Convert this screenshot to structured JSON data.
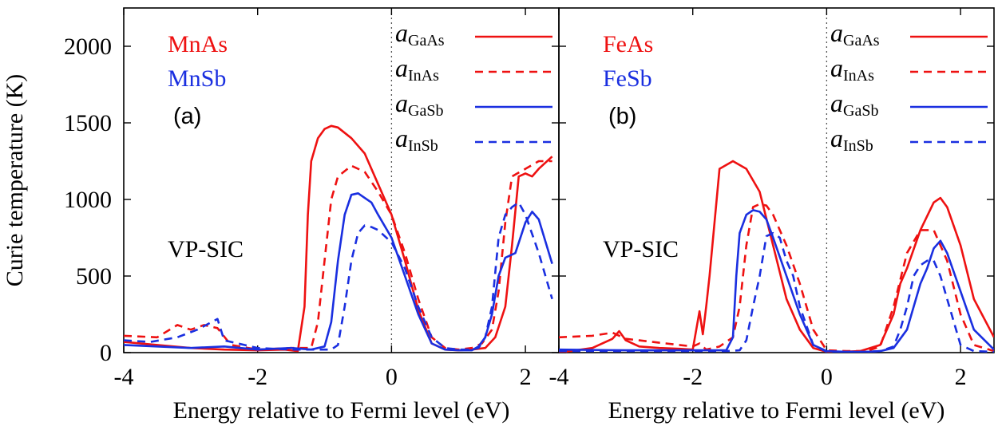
{
  "ylabel": "Curie temperature (K)",
  "yticks": [
    "0",
    "500",
    "1000",
    "1500",
    "2000"
  ],
  "ylim": [
    0,
    2250
  ],
  "xlim": [
    -4,
    2.5
  ],
  "colors": {
    "red": "#ee1111",
    "blue": "#1a2fe0",
    "axis": "#000000"
  },
  "chart_data": [
    {
      "type": "line",
      "panel_label": "(a)",
      "compound_labels": [
        "MnAs",
        "MnSb"
      ],
      "method_label": "VP-SIC",
      "xlabel": "Energy relative to Fermi level (eV)",
      "xticks": [
        "-4",
        "-2",
        "0",
        "2"
      ],
      "ylabel": "Curie temperature (K)",
      "xlim": [
        -4,
        2.5
      ],
      "ylim": [
        0,
        2250
      ],
      "fermi_line": 0,
      "legend_position": "top-right",
      "series": [
        {
          "name": "a_GaAs",
          "base": "a",
          "sub": "GaAs",
          "color": "red",
          "dash": false,
          "x": [
            -4,
            -3.5,
            -3,
            -2.5,
            -2,
            -1.6,
            -1.4,
            -1.3,
            -1.25,
            -1.2,
            -1.1,
            -1.0,
            -0.9,
            -0.8,
            -0.6,
            -0.4,
            -0.2,
            0,
            0.2,
            0.4,
            0.6,
            0.8,
            1.0,
            1.2,
            1.4,
            1.55,
            1.7,
            1.8,
            1.9,
            2.0,
            2.1,
            2.2,
            2.4
          ],
          "y": [
            70,
            50,
            30,
            20,
            15,
            20,
            10,
            300,
            900,
            1250,
            1400,
            1460,
            1480,
            1470,
            1400,
            1300,
            1100,
            900,
            600,
            280,
            60,
            20,
            15,
            20,
            30,
            100,
            300,
            700,
            1150,
            1170,
            1150,
            1200,
            1280
          ]
        },
        {
          "name": "a_InAs",
          "base": "a",
          "sub": "InAs",
          "color": "red",
          "dash": true,
          "x": [
            -4,
            -3.5,
            -3.2,
            -3,
            -2.8,
            -2.6,
            -2.4,
            -2,
            -1.5,
            -1.2,
            -1.1,
            -1.0,
            -0.9,
            -0.8,
            -0.6,
            -0.4,
            -0.2,
            0,
            0.2,
            0.4,
            0.6,
            0.8,
            1.0,
            1.2,
            1.35,
            1.5,
            1.6,
            1.7,
            1.8,
            2.0,
            2.2,
            2.4
          ],
          "y": [
            110,
            100,
            180,
            150,
            180,
            160,
            50,
            20,
            30,
            30,
            200,
            600,
            1000,
            1150,
            1220,
            1180,
            1050,
            900,
            650,
            350,
            100,
            30,
            20,
            30,
            60,
            150,
            400,
            850,
            1150,
            1200,
            1250,
            1250
          ]
        },
        {
          "name": "a_GaSb",
          "base": "a",
          "sub": "GaSb",
          "color": "blue",
          "dash": false,
          "x": [
            -4,
            -3.5,
            -3,
            -2.5,
            -2,
            -1.5,
            -1.2,
            -1.0,
            -0.9,
            -0.8,
            -0.7,
            -0.6,
            -0.5,
            -0.4,
            -0.3,
            -0.2,
            0,
            0.2,
            0.4,
            0.6,
            0.8,
            1.0,
            1.2,
            1.3,
            1.4,
            1.5,
            1.6,
            1.7,
            1.85,
            2.0,
            2.1,
            2.2,
            2.4
          ],
          "y": [
            50,
            40,
            30,
            40,
            20,
            30,
            20,
            40,
            200,
            600,
            900,
            1030,
            1040,
            1010,
            980,
            900,
            750,
            500,
            250,
            60,
            20,
            15,
            15,
            40,
            100,
            250,
            500,
            620,
            650,
            850,
            920,
            870,
            580
          ]
        },
        {
          "name": "a_InSb",
          "base": "a",
          "sub": "InSb",
          "color": "blue",
          "dash": true,
          "x": [
            -4,
            -3.6,
            -3.2,
            -2.9,
            -2.6,
            -2.5,
            -2.0,
            -1.5,
            -1.2,
            -0.9,
            -0.8,
            -0.7,
            -0.6,
            -0.5,
            -0.4,
            -0.3,
            -0.2,
            0,
            0.2,
            0.4,
            0.6,
            0.8,
            1.0,
            1.2,
            1.3,
            1.4,
            1.5,
            1.6,
            1.7,
            1.8,
            1.9,
            2.0,
            2.2,
            2.4
          ],
          "y": [
            80,
            70,
            100,
            150,
            220,
            80,
            30,
            20,
            20,
            20,
            50,
            300,
            600,
            780,
            830,
            820,
            800,
            720,
            550,
            300,
            100,
            30,
            20,
            20,
            30,
            100,
            300,
            750,
            900,
            950,
            980,
            900,
            650,
            350
          ]
        }
      ]
    },
    {
      "type": "line",
      "panel_label": "(b)",
      "compound_labels": [
        "FeAs",
        "FeSb"
      ],
      "method_label": "VP-SIC",
      "xlabel": "Energy relative to Fermi level (eV)",
      "xticks": [
        "-4",
        "-2",
        "0",
        "2"
      ],
      "ylabel": "",
      "xlim": [
        -4,
        2.5
      ],
      "ylim": [
        0,
        2250
      ],
      "fermi_line": 0,
      "legend_position": "top-right",
      "series": [
        {
          "name": "a_GaAs",
          "base": "a",
          "sub": "GaAs",
          "color": "red",
          "dash": false,
          "x": [
            -4,
            -3.5,
            -3.2,
            -3.1,
            -3.0,
            -2.8,
            -2.5,
            -2.2,
            -2.0,
            -1.9,
            -1.85,
            -1.8,
            -1.75,
            -1.6,
            -1.4,
            -1.2,
            -1.0,
            -0.8,
            -0.6,
            -0.4,
            -0.2,
            0,
            0.2,
            0.5,
            0.8,
            1.0,
            1.1,
            1.2,
            1.4,
            1.6,
            1.7,
            1.8,
            2.0,
            2.2,
            2.5
          ],
          "y": [
            0,
            30,
            90,
            140,
            80,
            40,
            30,
            25,
            20,
            270,
            120,
            300,
            500,
            1200,
            1250,
            1200,
            1050,
            700,
            350,
            150,
            30,
            5,
            5,
            10,
            50,
            250,
            450,
            550,
            800,
            980,
            1010,
            950,
            700,
            350,
            100
          ]
        },
        {
          "name": "a_InAs",
          "base": "a",
          "sub": "InAs",
          "color": "red",
          "dash": true,
          "x": [
            -4,
            -3.5,
            -3.2,
            -3,
            -2.8,
            -2.6,
            -2.4,
            -2.2,
            -2.0,
            -1.9,
            -1.8,
            -1.6,
            -1.4,
            -1.3,
            -1.2,
            -1.1,
            -1.0,
            -0.9,
            -0.8,
            -0.6,
            -0.4,
            -0.2,
            0,
            0.3,
            0.6,
            0.8,
            1.0,
            1.2,
            1.4,
            1.6,
            1.8,
            2.0,
            2.2,
            2.5
          ],
          "y": [
            100,
            110,
            130,
            90,
            80,
            70,
            60,
            50,
            40,
            60,
            20,
            40,
            100,
            300,
            700,
            950,
            970,
            960,
            900,
            700,
            450,
            150,
            15,
            10,
            10,
            40,
            300,
            650,
            800,
            800,
            600,
            250,
            50,
            10
          ]
        },
        {
          "name": "a_GaSb",
          "base": "a",
          "sub": "GaSb",
          "color": "blue",
          "dash": false,
          "x": [
            -4,
            -3.0,
            -2.0,
            -1.5,
            -1.4,
            -1.35,
            -1.3,
            -1.2,
            -1.1,
            -1.0,
            -0.9,
            -0.8,
            -0.6,
            -0.4,
            -0.2,
            0,
            0.3,
            0.6,
            0.8,
            1.0,
            1.2,
            1.4,
            1.5,
            1.6,
            1.7,
            1.8,
            2.0,
            2.2,
            2.5
          ],
          "y": [
            20,
            15,
            15,
            15,
            100,
            500,
            780,
            900,
            930,
            920,
            870,
            750,
            500,
            250,
            50,
            10,
            5,
            5,
            10,
            30,
            150,
            450,
            550,
            680,
            730,
            650,
            400,
            150,
            20
          ]
        },
        {
          "name": "a_InSb",
          "base": "a",
          "sub": "InSb",
          "color": "blue",
          "dash": true,
          "x": [
            -4,
            -3.0,
            -2.0,
            -1.5,
            -1.3,
            -1.2,
            -1.1,
            -1.0,
            -0.9,
            -0.8,
            -0.7,
            -0.6,
            -0.5,
            -0.4,
            -0.2,
            0,
            0.3,
            0.6,
            0.8,
            1.0,
            1.1,
            1.2,
            1.3,
            1.4,
            1.5,
            1.6,
            1.7,
            1.8,
            2.0,
            2.2,
            2.5
          ],
          "y": [
            10,
            10,
            10,
            10,
            15,
            80,
            300,
            500,
            760,
            780,
            750,
            600,
            500,
            300,
            50,
            5,
            5,
            5,
            10,
            40,
            150,
            300,
            500,
            570,
            600,
            600,
            500,
            350,
            50,
            10,
            5
          ]
        }
      ]
    }
  ]
}
